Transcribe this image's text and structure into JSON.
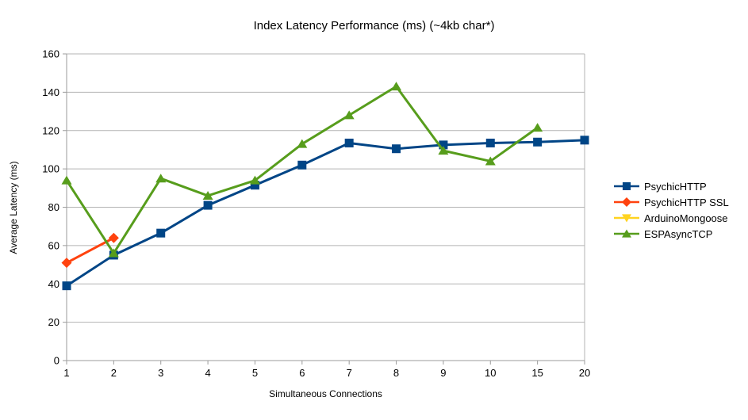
{
  "chart_data": {
    "type": "line",
    "title": "Index Latency Performance (ms) (~4kb char*)",
    "xlabel": "Simultaneous Connections",
    "ylabel": "Average Latency (ms)",
    "categories": [
      "1",
      "2",
      "3",
      "4",
      "5",
      "6",
      "7",
      "8",
      "9",
      "10",
      "15",
      "20"
    ],
    "y_ticks": [
      0,
      20,
      40,
      60,
      80,
      100,
      120,
      140,
      160
    ],
    "ylim": [
      0,
      160
    ],
    "grid": "horizontal",
    "legend_position": "right",
    "series": [
      {
        "name": "PsychicHTTP",
        "color": "#004586",
        "marker": "square",
        "values": [
          39,
          55,
          66.5,
          81,
          91.5,
          102,
          113.5,
          110.5,
          112.5,
          113.5,
          114,
          115
        ]
      },
      {
        "name": "PsychicHTTP SSL",
        "color": "#ff420e",
        "marker": "diamond",
        "values": [
          51,
          64,
          null,
          null,
          null,
          null,
          null,
          null,
          null,
          null,
          null,
          null
        ]
      },
      {
        "name": "ArduinoMongoose",
        "color": "#ffd320",
        "marker": "triangle-down",
        "values": [
          null,
          null,
          null,
          null,
          null,
          null,
          null,
          null,
          null,
          null,
          null,
          null
        ]
      },
      {
        "name": "ESPAsyncTCP",
        "color": "#579d1c",
        "marker": "triangle-up",
        "values": [
          94,
          56,
          95,
          86,
          94,
          113,
          128,
          143,
          109.5,
          104,
          121.5,
          null
        ]
      }
    ],
    "colors": {
      "grid": "#b3b3b3",
      "axis": "#9b9b9b",
      "text": "#000000",
      "background": "#ffffff"
    }
  }
}
